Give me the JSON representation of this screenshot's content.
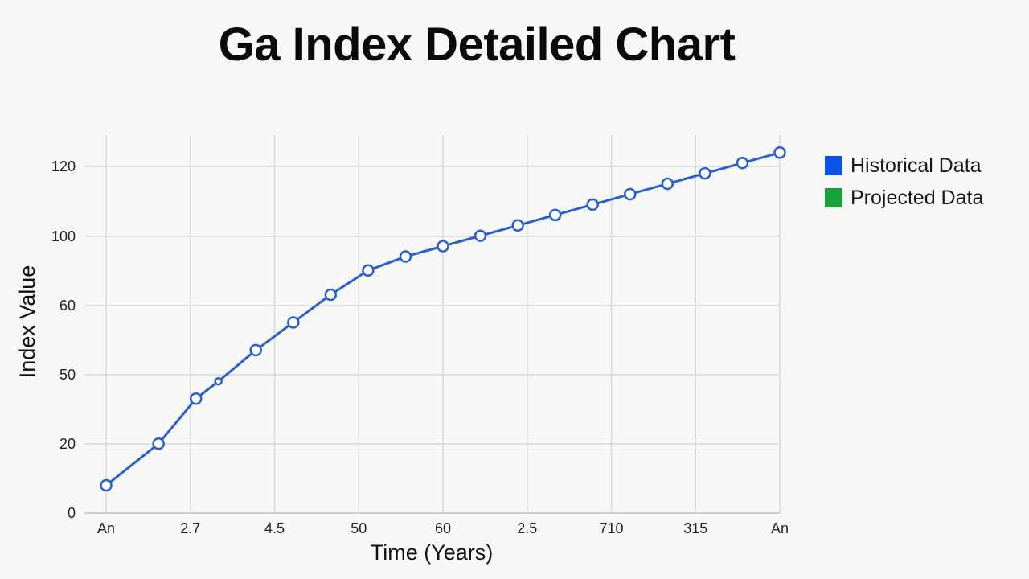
{
  "title": "Ga Index Detailed Chart",
  "legend": [
    {
      "label": "Historical Data",
      "color": "#0a55e6"
    },
    {
      "label": "Projected Data",
      "color": "#19a43a"
    }
  ],
  "chart_data": {
    "type": "line",
    "title": "Ga Index Detailed Chart",
    "xlabel": "Time (Years)",
    "ylabel": "Index Value",
    "x_tick_labels": [
      "An",
      "2.7",
      "4.5",
      "50",
      "60",
      "2.5",
      "710",
      "315",
      "An"
    ],
    "y_tick_labels": [
      "0",
      "20",
      "50",
      "60",
      "100",
      "120"
    ],
    "grid": true,
    "legend_position": "right",
    "line_color": "#2a5fd0",
    "series": [
      {
        "name": "Historical Data",
        "x": [
          0,
          0.7,
          1.2,
          1.5,
          2.0,
          2.5,
          3.0,
          3.5,
          4.0,
          4.5,
          5.0,
          5.5,
          6.0,
          6.5,
          7.0,
          7.5,
          8.0,
          8.5,
          9.0
        ],
        "values": [
          8,
          20,
          33,
          38,
          47,
          55,
          63,
          70,
          74,
          77,
          80,
          83,
          86,
          89,
          92,
          95,
          98,
          101,
          104
        ],
        "x_positions": [
          0,
          0.7,
          1.2,
          1.5,
          2.0,
          2.5,
          3.0,
          3.5,
          4.0,
          4.5,
          5.0,
          5.5,
          6.0,
          6.5,
          7.0,
          7.5,
          8.0,
          8.5,
          9.0
        ]
      }
    ]
  }
}
